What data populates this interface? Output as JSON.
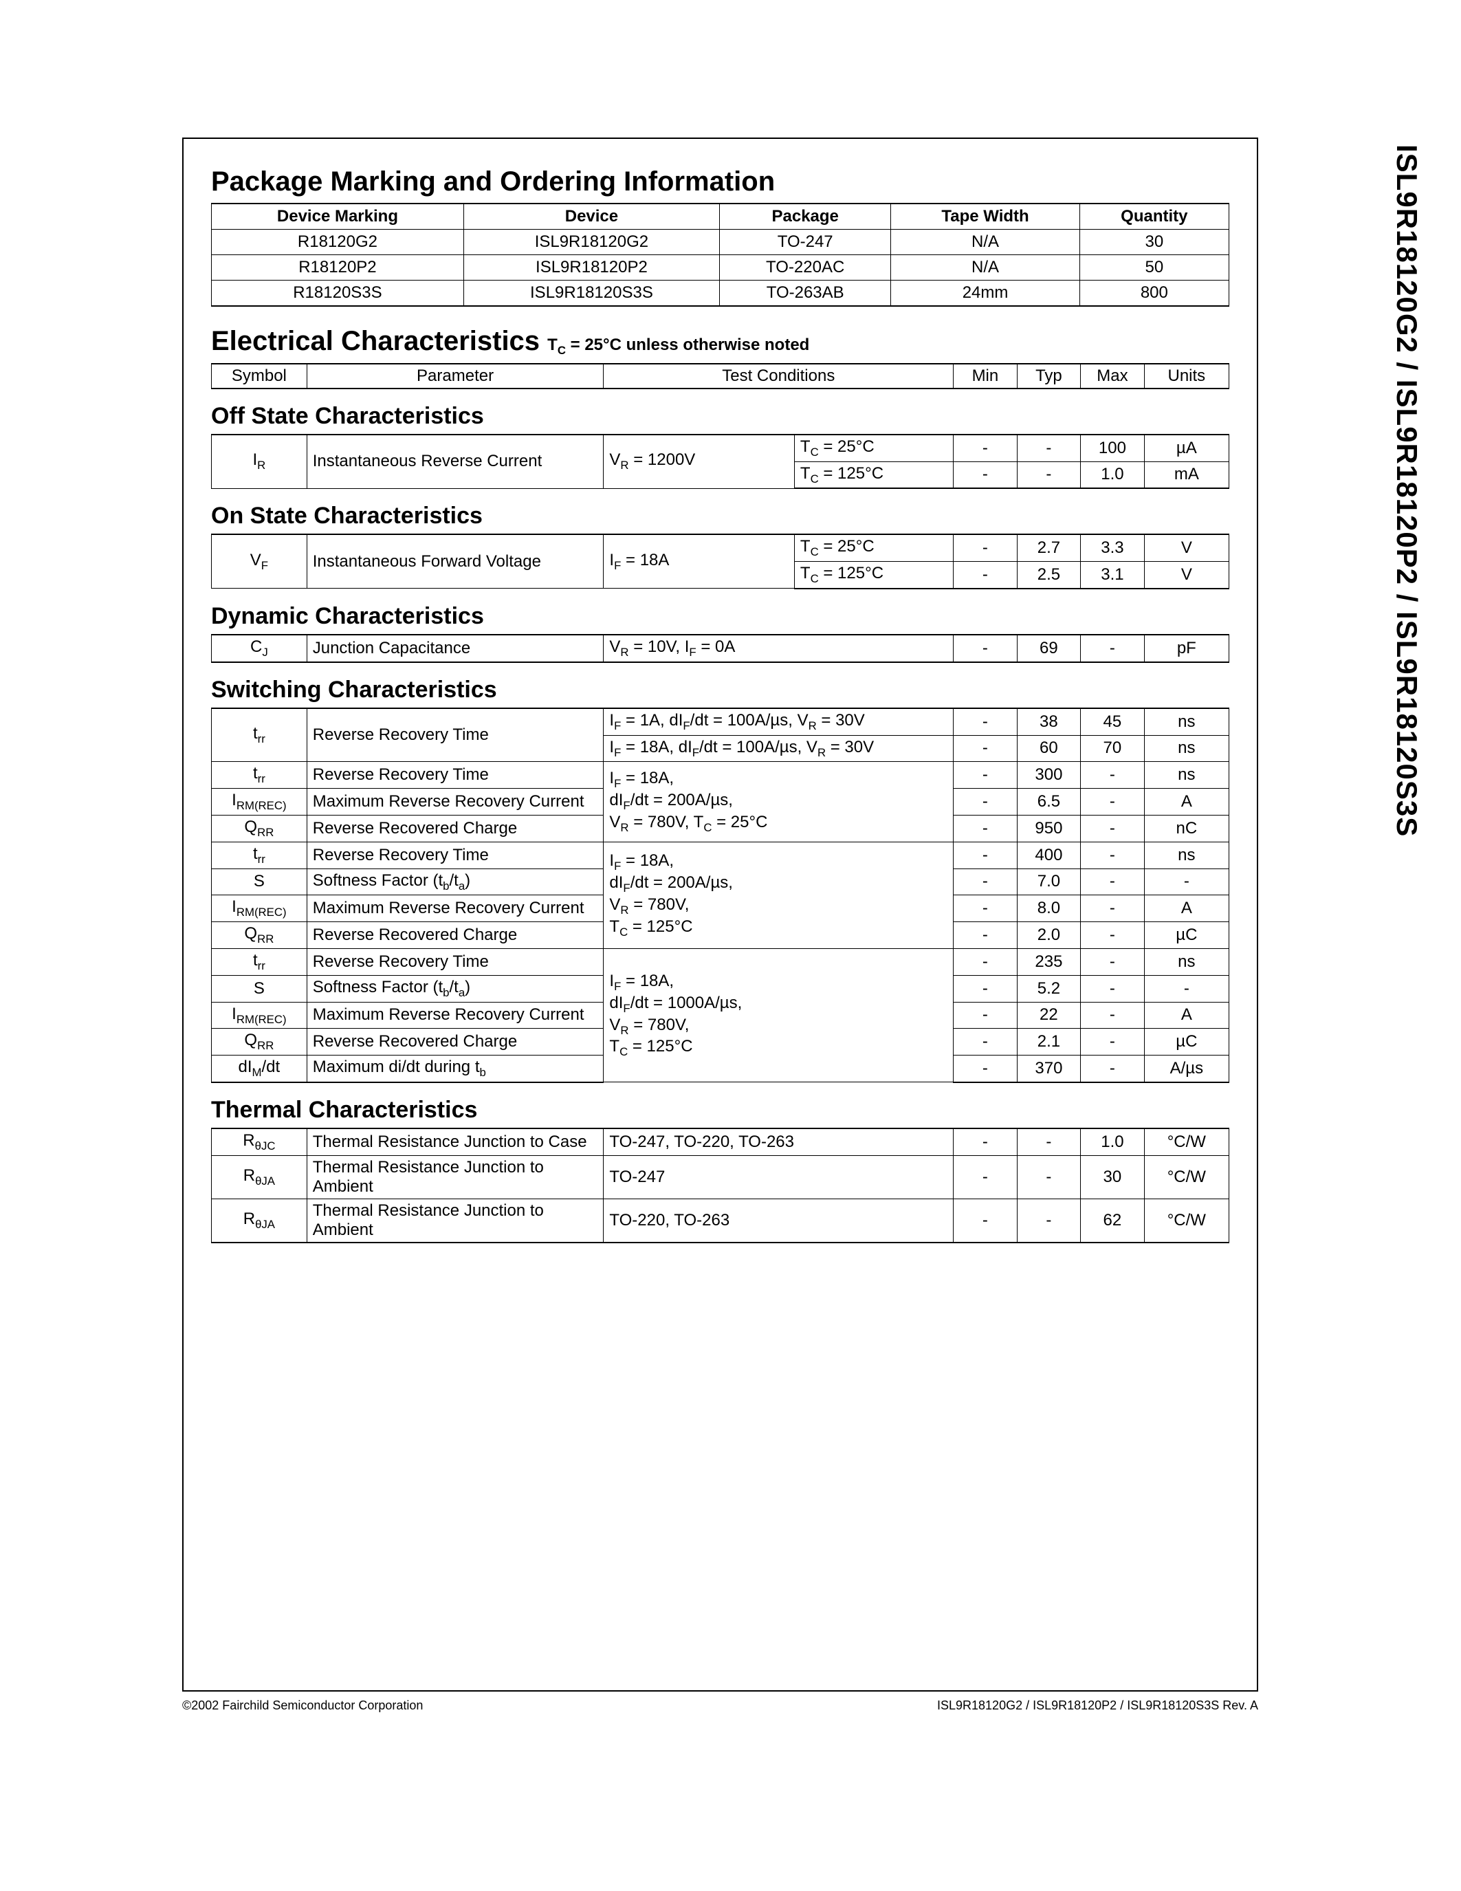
{
  "sideTitle": "ISL9R18120G2 / ISL9R18120P2 / ISL9R18120S3S",
  "section1": {
    "title": "Package Marking and Ordering Information",
    "headers": [
      "Device Marking",
      "Device",
      "Package",
      "Tape Width",
      "Quantity"
    ],
    "rows": [
      [
        "R18120G2",
        "ISL9R18120G2",
        "TO-247",
        "N/A",
        "30"
      ],
      [
        "R18120P2",
        "ISL9R18120P2",
        "TO-220AC",
        "N/A",
        "50"
      ],
      [
        "R18120S3S",
        "ISL9R18120S3S",
        "TO-263AB",
        "24mm",
        "800"
      ]
    ]
  },
  "section2": {
    "title": "Electrical Characteristics",
    "note_html": "T<sub>C</sub> = 25°C unless otherwise noted",
    "headers": [
      "Symbol",
      "Parameter",
      "Test Conditions",
      "Min",
      "Typ",
      "Max",
      "Units"
    ]
  },
  "offState": {
    "title": "Off State Characteristics",
    "rows": [
      {
        "sym_html": "I<sub>R</sub>",
        "param": "Instantaneous Reverse Current",
        "cond1_html": "V<sub>R</sub> = 1200V",
        "cond2_html": "T<sub>C</sub> = 25°C",
        "min": "-",
        "typ": "-",
        "max": "100",
        "units": "µA",
        "rowspan_sym": 2,
        "rowspan_param": 2,
        "rowspan_cond1": 2
      },
      {
        "cond2_html": "T<sub>C</sub> = 125°C",
        "min": "-",
        "typ": "-",
        "max": "1.0",
        "units": "mA"
      }
    ]
  },
  "onState": {
    "title": "On State Characteristics",
    "rows": [
      {
        "sym_html": "V<sub>F</sub>",
        "param": "Instantaneous Forward Voltage",
        "cond1_html": "I<sub>F</sub> = 18A",
        "cond2_html": "T<sub>C</sub> = 25°C",
        "min": "-",
        "typ": "2.7",
        "max": "3.3",
        "units": "V",
        "rowspan_sym": 2,
        "rowspan_param": 2,
        "rowspan_cond1": 2
      },
      {
        "cond2_html": "T<sub>C</sub> = 125°C",
        "min": "-",
        "typ": "2.5",
        "max": "3.1",
        "units": "V"
      }
    ]
  },
  "dynamic": {
    "title": "Dynamic Characteristics",
    "rows": [
      {
        "sym_html": "C<sub>J</sub>",
        "param": "Junction Capacitance",
        "cond_html": "V<sub>R</sub> = 10V, I<sub>F</sub> = 0A",
        "min": "-",
        "typ": "69",
        "max": "-",
        "units": "pF"
      }
    ]
  },
  "switching": {
    "title": "Switching Characteristics",
    "rows": [
      {
        "sym_html": "t<sub>rr</sub>",
        "param": "Reverse Recovery Time",
        "cond_html": "I<sub>F</sub> = 1A, dI<sub>F</sub>/dt = 100A/µs, V<sub>R</sub> = 30V",
        "min": "-",
        "typ": "38",
        "max": "45",
        "units": "ns",
        "rowspan_sym": 2,
        "rowspan_param": 2
      },
      {
        "cond_html": "I<sub>F</sub> = 18A, dI<sub>F</sub>/dt = 100A/µs, V<sub>R</sub> = 30V",
        "min": "-",
        "typ": "60",
        "max": "70",
        "units": "ns"
      },
      {
        "sym_html": "t<sub>rr</sub>",
        "param": "Reverse Recovery Time",
        "cond_html": "I<sub>F</sub> = 18A,<br>dI<sub>F</sub>/dt = 200A/µs,<br>V<sub>R</sub> = 780V, T<sub>C</sub> = 25°C",
        "rowspan_cond": 3,
        "min": "-",
        "typ": "300",
        "max": "-",
        "units": "ns"
      },
      {
        "sym_html": "I<sub>RM(REC)</sub>",
        "param": "Maximum Reverse Recovery Current",
        "min": "-",
        "typ": "6.5",
        "max": "-",
        "units": "A"
      },
      {
        "sym_html": "Q<sub>RR</sub>",
        "param": "Reverse Recovered Charge",
        "min": "-",
        "typ": "950",
        "max": "-",
        "units": "nC"
      },
      {
        "sym_html": "t<sub>rr</sub>",
        "param": "Reverse Recovery Time",
        "cond_html": "I<sub>F</sub> = 18A,<br>dI<sub>F</sub>/dt = 200A/µs,<br>V<sub>R</sub> = 780V,<br>T<sub>C</sub> = 125°C",
        "rowspan_cond": 4,
        "min": "-",
        "typ": "400",
        "max": "-",
        "units": "ns"
      },
      {
        "sym_html": "S",
        "param_html": "Softness Factor (t<sub>b</sub>/t<sub>a</sub>)",
        "min": "-",
        "typ": "7.0",
        "max": "-",
        "units": "-"
      },
      {
        "sym_html": "I<sub>RM(REC)</sub>",
        "param": "Maximum Reverse Recovery Current",
        "min": "-",
        "typ": "8.0",
        "max": "-",
        "units": "A"
      },
      {
        "sym_html": "Q<sub>RR</sub>",
        "param": "Reverse Recovered Charge",
        "min": "-",
        "typ": "2.0",
        "max": "-",
        "units": "µC"
      },
      {
        "sym_html": "t<sub>rr</sub>",
        "param": "Reverse Recovery Time",
        "cond_html": "I<sub>F</sub> = 18A,<br>dI<sub>F</sub>/dt = 1000A/µs,<br>V<sub>R</sub> = 780V,<br>T<sub>C</sub> = 125°C",
        "rowspan_cond": 5,
        "min": "-",
        "typ": "235",
        "max": "-",
        "units": "ns"
      },
      {
        "sym_html": "S",
        "param_html": "Softness Factor (t<sub>b</sub>/t<sub>a</sub>)",
        "min": "-",
        "typ": "5.2",
        "max": "-",
        "units": "-"
      },
      {
        "sym_html": "I<sub>RM(REC)</sub>",
        "param": "Maximum Reverse Recovery Current",
        "min": "-",
        "typ": "22",
        "max": "-",
        "units": "A"
      },
      {
        "sym_html": "Q<sub>RR</sub>",
        "param": "Reverse Recovered Charge",
        "min": "-",
        "typ": "2.1",
        "max": "-",
        "units": "µC"
      },
      {
        "sym_html": "dI<sub>M</sub>/dt",
        "param_html": "Maximum di/dt during t<sub>b</sub>",
        "min": "-",
        "typ": "370",
        "max": "-",
        "units": "A/µs"
      }
    ]
  },
  "thermal": {
    "title": "Thermal Characteristics",
    "rows": [
      {
        "sym_html": "R<sub>θJC</sub>",
        "param": "Thermal Resistance Junction to Case",
        "cond": "TO-247, TO-220, TO-263",
        "min": "-",
        "typ": "-",
        "max": "1.0",
        "units": "°C/W"
      },
      {
        "sym_html": "R<sub>θJA</sub>",
        "param": "Thermal Resistance Junction to Ambient",
        "cond": "TO-247",
        "min": "-",
        "typ": "-",
        "max": "30",
        "units": "°C/W"
      },
      {
        "sym_html": "R<sub>θJA</sub>",
        "param": "Thermal Resistance Junction to Ambient",
        "cond": "TO-220, TO-263",
        "min": "-",
        "typ": "-",
        "max": "62",
        "units": "°C/W"
      }
    ]
  },
  "footer": {
    "left": "©2002 Fairchild Semiconductor Corporation",
    "right": "ISL9R18120G2 / ISL9R18120P2 / ISL9R18120S3S   Rev. A"
  }
}
